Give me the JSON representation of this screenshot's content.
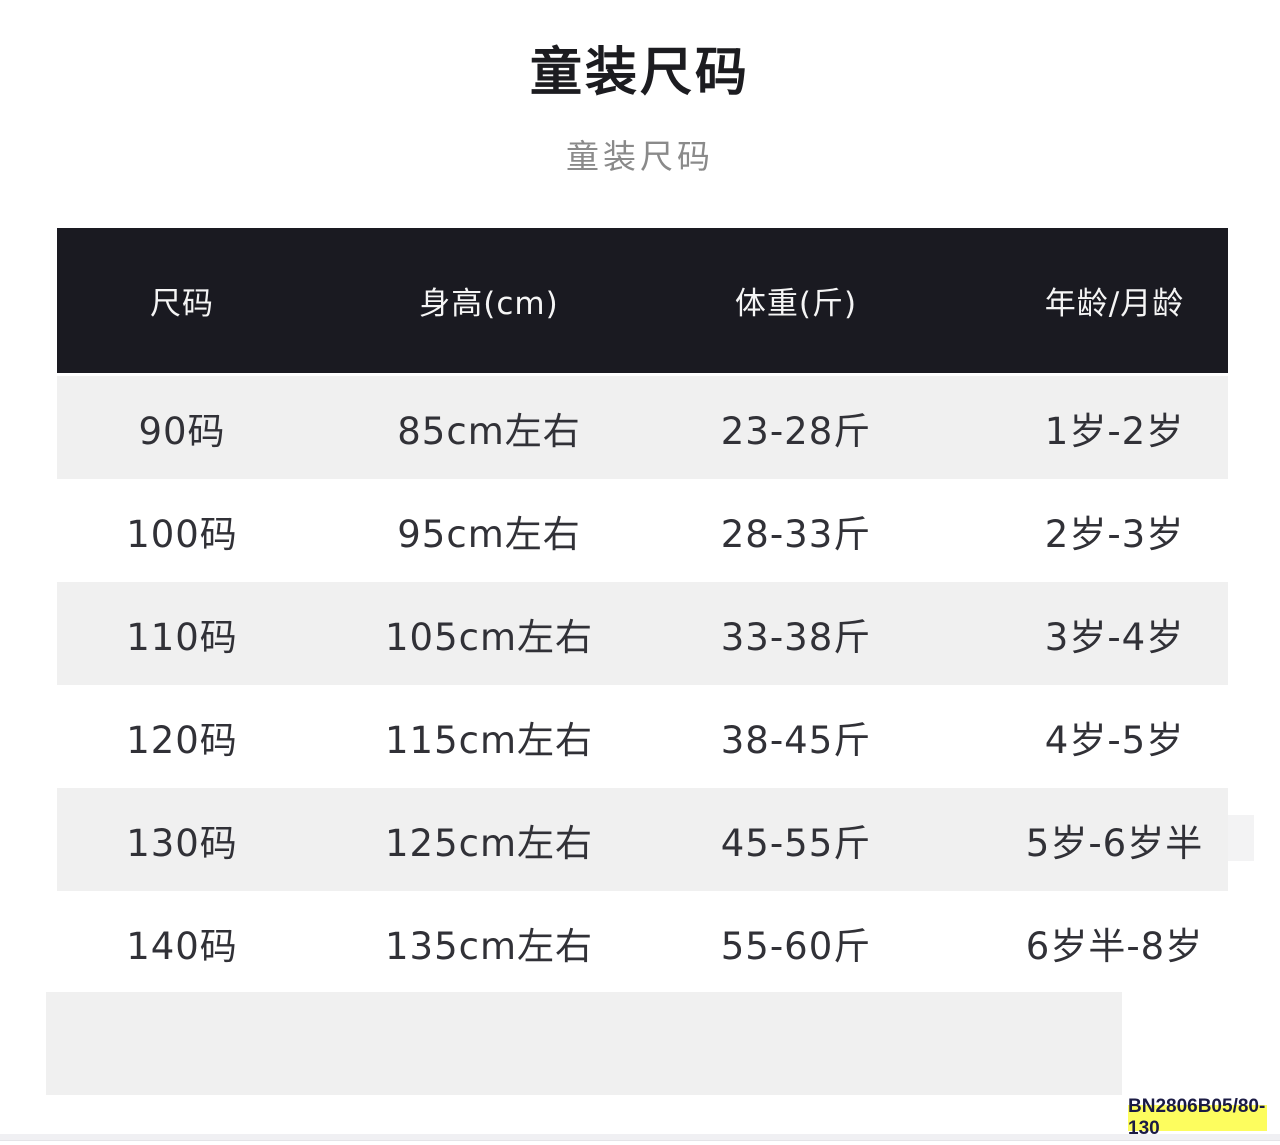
{
  "header": {
    "title": "童装尺码",
    "subtitle": "童装尺码"
  },
  "table": {
    "headers": [
      "尺码",
      "身高(cm)",
      "体重(斤)",
      "年龄/月龄"
    ],
    "rows": [
      [
        "90码",
        "85cm左右",
        "23-28斤",
        "1岁-2岁"
      ],
      [
        "100码",
        "95cm左右",
        "28-33斤",
        "2岁-3岁"
      ],
      [
        "110码",
        "105cm左右",
        "33-38斤",
        "3岁-4岁"
      ],
      [
        "120码",
        "115cm左右",
        "38-45斤",
        "4岁-5岁"
      ],
      [
        "130码",
        "125cm左右",
        "45-55斤",
        "5岁-6岁半"
      ],
      [
        "140码",
        "135cm左右",
        "55-60斤",
        "6岁半-8岁"
      ]
    ]
  },
  "badge": {
    "label": "BN2806B05/80-130"
  },
  "colors": {
    "header_bg": "#1a1a21",
    "stripe": "#f0f0f0",
    "badge_bg": "#fdfd5e",
    "badge_text": "#1b1b44"
  }
}
